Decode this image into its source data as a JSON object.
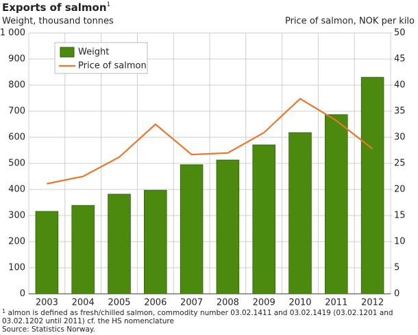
{
  "chart_data": {
    "type": "bar",
    "title": "Exports of salmon",
    "title_marker": "1",
    "y_label": "Weight, thousand tonnes",
    "y2_label": "Price of salmon, NOK per kilo",
    "categories": [
      "2003",
      "2004",
      "2005",
      "2006",
      "2007",
      "2008",
      "2009",
      "2010",
      "2011",
      "2012"
    ],
    "series": [
      {
        "name": "Weight",
        "type": "bar",
        "color": "#4b8a0e",
        "values": [
          316,
          339,
          382,
          397,
          495,
          513,
          571,
          618,
          687,
          830
        ]
      },
      {
        "name": "Price of salmon",
        "type": "line",
        "axis": "y2",
        "color": "#e8762d",
        "values": [
          21.1,
          22.5,
          26.2,
          32.5,
          26.7,
          27.0,
          30.9,
          37.4,
          33.2,
          27.8
        ]
      }
    ],
    "ylim": [
      0,
      1000
    ],
    "yticks": [
      0,
      100,
      200,
      300,
      400,
      500,
      600,
      700,
      800,
      900,
      {
        "value": 1000,
        "label": "1 000"
      }
    ],
    "y2lim": [
      0,
      50
    ],
    "y2ticks": [
      0,
      5,
      10,
      15,
      20,
      25,
      30,
      35,
      40,
      45,
      50
    ],
    "grid": true,
    "legend": "upper left",
    "footnote_marker": "1",
    "footnote": "almon is defined as fresh/chilled salmon, commodity number 03.02.1411 and 03.02.1419 (03.02.1201 and 03.02.1202 until 2011) cf. the HS nomenclature",
    "source": "Source: Statistics Norway."
  }
}
